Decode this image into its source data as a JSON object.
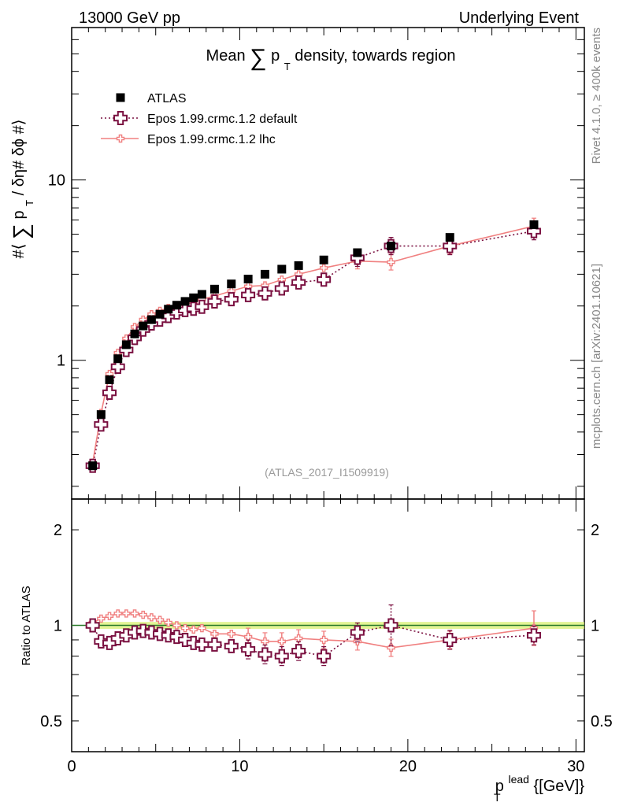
{
  "header": {
    "left": "13000 GeV pp",
    "right": "Underlying Event"
  },
  "side_labels": {
    "rivet": "Rivet 4.1.0, ≥ 400k events",
    "mcplots": "mcplots.cern.ch [arXiv:2401.10621]"
  },
  "watermark": "(ATLAS_2017_I1509919)",
  "colors": {
    "data": "#000000",
    "default": "#7a1040",
    "lhc": "#f08080",
    "band": "#d8f070",
    "refline": "#2a7a2a"
  },
  "chart_data": [
    {
      "type": "scatter",
      "name": "main",
      "title_parts": {
        "pre": "Mean",
        "sum": "∑",
        "p": "p",
        "sub": "T",
        "post": "density, towards region"
      },
      "ylabel_parts": {
        "pre": "#⟨",
        "sum": "∑",
        "p": "p",
        "sub": "T",
        "post": "/ δη# δϕ #⟩"
      },
      "yscale": "log",
      "xlim": [
        0,
        30.5
      ],
      "ylim": [
        0.17,
        70
      ],
      "ytick_labels": [
        {
          "v": 1,
          "label": "1"
        },
        {
          "v": 10,
          "label": "10"
        }
      ],
      "legend": {
        "position": "top-left",
        "entries": [
          "ATLAS",
          "Epos 1.99.crmc.1.2 default",
          "Epos 1.99.crmc.1.2 lhc"
        ]
      },
      "x": [
        1.25,
        1.75,
        2.25,
        2.75,
        3.25,
        3.75,
        4.25,
        4.75,
        5.25,
        5.75,
        6.25,
        6.75,
        7.25,
        7.75,
        8.5,
        9.5,
        10.5,
        11.5,
        12.5,
        13.5,
        15.0,
        17.0,
        19.0,
        22.5,
        27.5
      ],
      "series": [
        {
          "name": "ATLAS",
          "marker": "square",
          "values": [
            0.26,
            0.5,
            0.78,
            1.02,
            1.22,
            1.4,
            1.55,
            1.68,
            1.8,
            1.92,
            2.02,
            2.12,
            2.22,
            2.32,
            2.48,
            2.65,
            2.82,
            3.0,
            3.2,
            3.35,
            3.6,
            3.95,
            4.3,
            4.8,
            5.65
          ]
        },
        {
          "name": "Epos 1.99.crmc.1.2 default",
          "marker": "open-cross",
          "line": "dotted",
          "values": [
            0.26,
            0.44,
            0.66,
            0.92,
            1.14,
            1.33,
            1.48,
            1.6,
            1.68,
            1.76,
            1.84,
            1.9,
            1.93,
            1.98,
            2.12,
            2.18,
            2.3,
            2.35,
            2.5,
            2.7,
            2.8,
            3.7,
            4.3,
            4.3,
            5.2
          ]
        },
        {
          "name": "Epos 1.99.crmc.1.2 lhc",
          "marker": "small-cross",
          "line": "solid",
          "values": [
            0.27,
            0.51,
            0.84,
            1.1,
            1.32,
            1.53,
            1.68,
            1.8,
            1.88,
            1.95,
            2.0,
            2.04,
            2.1,
            2.18,
            2.27,
            2.42,
            2.57,
            2.6,
            2.8,
            3.0,
            3.25,
            3.55,
            3.5,
            4.3,
            5.55
          ]
        }
      ]
    },
    {
      "type": "scatter",
      "name": "ratio",
      "ylabel": "Ratio to ATLAS",
      "yscale": "log",
      "xlabel_parts": {
        "p": "p",
        "sup": "lead",
        "sub": "T",
        "unit": "{[GeV]}"
      },
      "xlim": [
        0,
        30.5
      ],
      "ylim": [
        0.4,
        2.5
      ],
      "xtick_labels": [
        {
          "v": 0,
          "label": "0"
        },
        {
          "v": 10,
          "label": "10"
        },
        {
          "v": 20,
          "label": "20"
        },
        {
          "v": 30,
          "label": "30"
        }
      ],
      "ytick_labels": [
        {
          "v": 0.5,
          "label": "0.5"
        },
        {
          "v": 1,
          "label": "1"
        },
        {
          "v": 2,
          "label": "2"
        }
      ],
      "x": [
        1.25,
        1.75,
        2.25,
        2.75,
        3.25,
        3.75,
        4.25,
        4.75,
        5.25,
        5.75,
        6.25,
        6.75,
        7.25,
        7.75,
        8.5,
        9.5,
        10.5,
        11.5,
        12.5,
        13.5,
        15.0,
        17.0,
        19.0,
        22.5,
        27.5
      ],
      "series": [
        {
          "name": "Epos 1.99.crmc.1.2 default",
          "marker": "open-cross",
          "line": "dotted",
          "values": [
            1.0,
            0.89,
            0.88,
            0.91,
            0.93,
            0.95,
            0.96,
            0.95,
            0.94,
            0.93,
            0.92,
            0.9,
            0.88,
            0.87,
            0.87,
            0.86,
            0.84,
            0.81,
            0.8,
            0.83,
            0.8,
            0.95,
            1.0,
            0.9,
            0.93
          ]
        },
        {
          "name": "Epos 1.99.crmc.1.2 lhc",
          "marker": "small-cross",
          "line": "solid",
          "values": [
            1.02,
            1.05,
            1.07,
            1.09,
            1.09,
            1.09,
            1.08,
            1.06,
            1.04,
            1.02,
            1.0,
            0.98,
            0.97,
            0.98,
            0.94,
            0.94,
            0.92,
            0.89,
            0.89,
            0.91,
            0.9,
            0.89,
            0.85,
            0.9,
            0.98
          ]
        }
      ]
    }
  ]
}
